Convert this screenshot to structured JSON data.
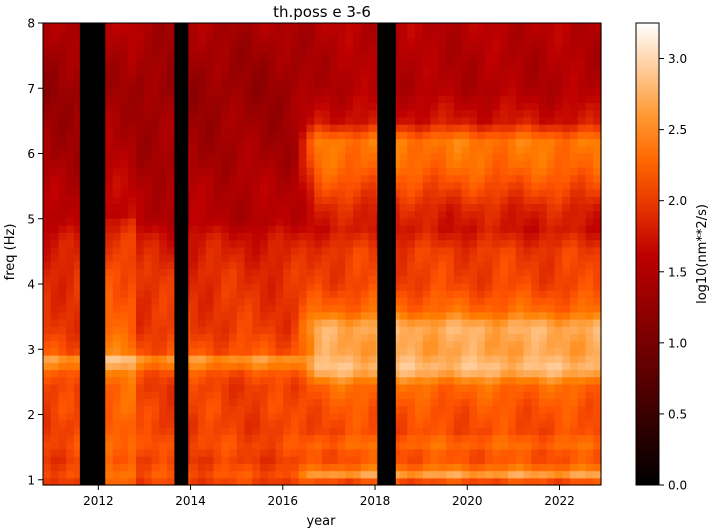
{
  "chart_data": {
    "type": "heatmap",
    "title": "th.poss e 3-6",
    "xlabel": "year",
    "ylabel": "freq (Hz)",
    "xlim": [
      2010.8,
      2022.9
    ],
    "ylim": [
      0.92,
      8.0
    ],
    "x_ticks": [
      2012,
      2014,
      2016,
      2018,
      2020,
      2022
    ],
    "x_tick_labels": [
      "2012",
      "2014",
      "2016",
      "2018",
      "2020",
      "2022"
    ],
    "y_ticks": [
      1,
      2,
      3,
      4,
      5,
      6,
      7,
      8
    ],
    "y_tick_labels": [
      "1",
      "2",
      "3",
      "4",
      "5",
      "6",
      "7",
      "8"
    ],
    "colorbar": {
      "label": "log10(nm**2/s)",
      "range": [
        0.0,
        3.25
      ],
      "ticks": [
        0.0,
        0.5,
        1.0,
        1.5,
        2.0,
        2.5,
        3.0
      ],
      "tick_labels": [
        "0.0",
        "0.5",
        "1.0",
        "1.5",
        "2.0",
        "2.5",
        "3.0"
      ],
      "colormap": "gist_heat"
    },
    "data_gaps_years": [
      [
        2011.6,
        2012.15
      ],
      [
        2013.65,
        2013.95
      ],
      [
        2018.05,
        2018.45
      ]
    ],
    "regime_change_year": 2016.5,
    "frequency_profile_before": [
      {
        "f": 0.92,
        "v": 2.0
      },
      {
        "f": 1.1,
        "v": 2.15
      },
      {
        "f": 1.3,
        "v": 2.0
      },
      {
        "f": 1.55,
        "v": 2.1
      },
      {
        "f": 1.8,
        "v": 2.0
      },
      {
        "f": 2.1,
        "v": 2.05
      },
      {
        "f": 2.45,
        "v": 2.0
      },
      {
        "f": 2.7,
        "v": 2.2
      },
      {
        "f": 2.82,
        "v": 2.7
      },
      {
        "f": 2.95,
        "v": 2.15
      },
      {
        "f": 3.3,
        "v": 2.0
      },
      {
        "f": 3.7,
        "v": 1.95
      },
      {
        "f": 4.2,
        "v": 1.9
      },
      {
        "f": 4.7,
        "v": 1.75
      },
      {
        "f": 5.0,
        "v": 1.5
      },
      {
        "f": 5.5,
        "v": 1.5
      },
      {
        "f": 6.0,
        "v": 1.4
      },
      {
        "f": 6.5,
        "v": 1.35
      },
      {
        "f": 7.0,
        "v": 1.3
      },
      {
        "f": 7.5,
        "v": 1.35
      },
      {
        "f": 8.0,
        "v": 1.45
      }
    ],
    "frequency_profile_after": [
      {
        "f": 0.92,
        "v": 2.0
      },
      {
        "f": 1.05,
        "v": 2.3
      },
      {
        "f": 1.12,
        "v": 2.95
      },
      {
        "f": 1.2,
        "v": 2.3
      },
      {
        "f": 1.35,
        "v": 2.1
      },
      {
        "f": 1.55,
        "v": 2.3
      },
      {
        "f": 1.75,
        "v": 2.1
      },
      {
        "f": 2.1,
        "v": 2.15
      },
      {
        "f": 2.45,
        "v": 2.3
      },
      {
        "f": 2.7,
        "v": 2.85
      },
      {
        "f": 3.0,
        "v": 2.65
      },
      {
        "f": 3.35,
        "v": 2.75
      },
      {
        "f": 3.6,
        "v": 2.3
      },
      {
        "f": 4.0,
        "v": 2.05
      },
      {
        "f": 4.5,
        "v": 2.0
      },
      {
        "f": 4.85,
        "v": 1.75
      },
      {
        "f": 5.15,
        "v": 1.85
      },
      {
        "f": 5.5,
        "v": 2.1
      },
      {
        "f": 5.8,
        "v": 2.3
      },
      {
        "f": 6.2,
        "v": 2.4
      },
      {
        "f": 6.5,
        "v": 1.75
      },
      {
        "f": 7.0,
        "v": 1.5
      },
      {
        "f": 7.5,
        "v": 1.5
      },
      {
        "f": 8.0,
        "v": 1.55
      }
    ]
  }
}
